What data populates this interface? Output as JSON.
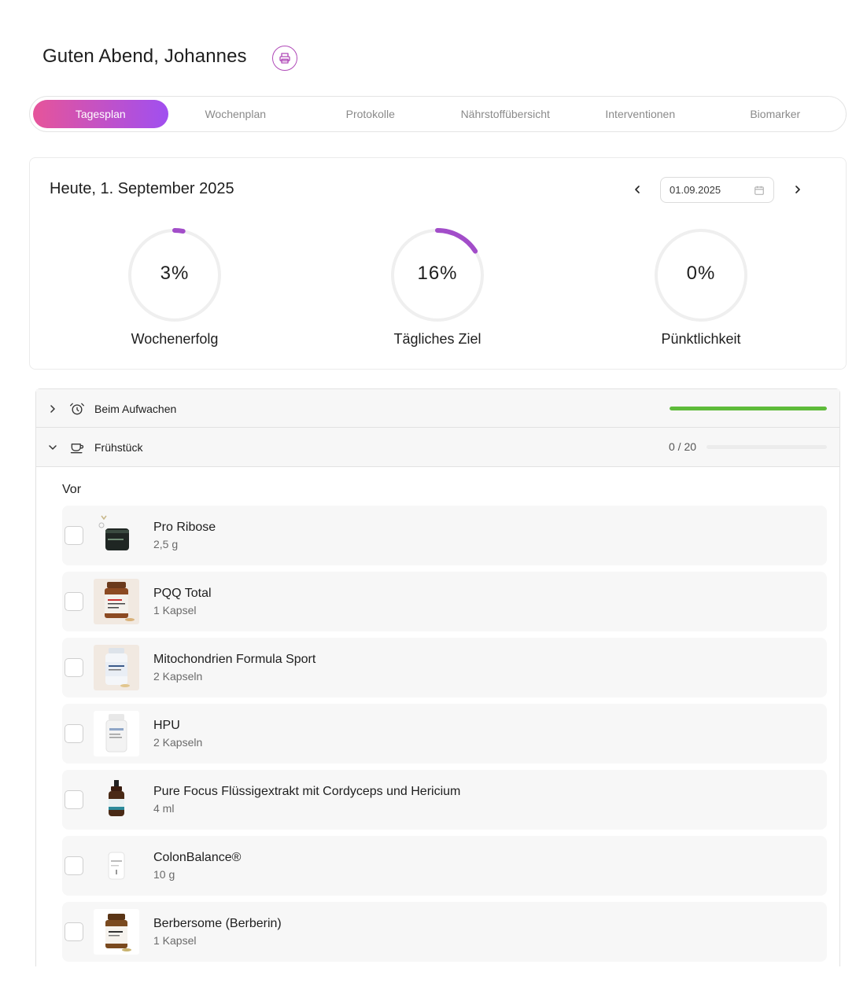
{
  "header": {
    "greeting": "Guten Abend, Johannes",
    "print_icon": "printer-icon",
    "accent": "#b04ab8"
  },
  "tabs": [
    {
      "label": "Tagesplan",
      "active": true
    },
    {
      "label": "Wochenplan",
      "active": false
    },
    {
      "label": "Protokolle",
      "active": false
    },
    {
      "label": "Nährstoffübersicht",
      "active": false
    },
    {
      "label": "Interventionen",
      "active": false
    },
    {
      "label": "Biomarker",
      "active": false
    }
  ],
  "summary": {
    "title": "Heute, 1. September 2025",
    "date_value": "01.09.2025",
    "prev_icon": "chevron-left-icon",
    "next_icon": "chevron-right-icon",
    "calendar_icon": "calendar-icon",
    "gauges": [
      {
        "value_text": "3%",
        "value": 0.03,
        "label": "Wochenerfolg"
      },
      {
        "value_text": "16%",
        "value": 0.16,
        "label": "Tägliches Ziel"
      },
      {
        "value_text": "0%",
        "value": 0.0,
        "label": "Pünktlichkeit"
      }
    ],
    "gauge_color": "#a24dc9"
  },
  "sections": [
    {
      "title": "Beim Aufwachen",
      "icon": "alarm-clock-icon",
      "expanded": false,
      "progress": 1.0,
      "progress_color": "#5ebb3a"
    },
    {
      "title": "Frühstück",
      "icon": "coffee-cup-icon",
      "expanded": true,
      "count_text": "0 / 20",
      "progress": 0.0
    }
  ],
  "group_label": "Vor",
  "items": [
    {
      "name": "Pro Ribose",
      "dose": "2,5 g"
    },
    {
      "name": "PQQ Total",
      "dose": "1 Kapsel"
    },
    {
      "name": "Mitochondrien Formula Sport",
      "dose": "2 Kapseln"
    },
    {
      "name": "HPU",
      "dose": "2 Kapseln"
    },
    {
      "name": "Pure Focus Flüssigextrakt mit Cordyceps und Hericium",
      "dose": "4 ml"
    },
    {
      "name": "ColonBalance®",
      "dose": "10 g"
    },
    {
      "name": "Berbersome (Berberin)",
      "dose": "1 Kapsel"
    }
  ]
}
